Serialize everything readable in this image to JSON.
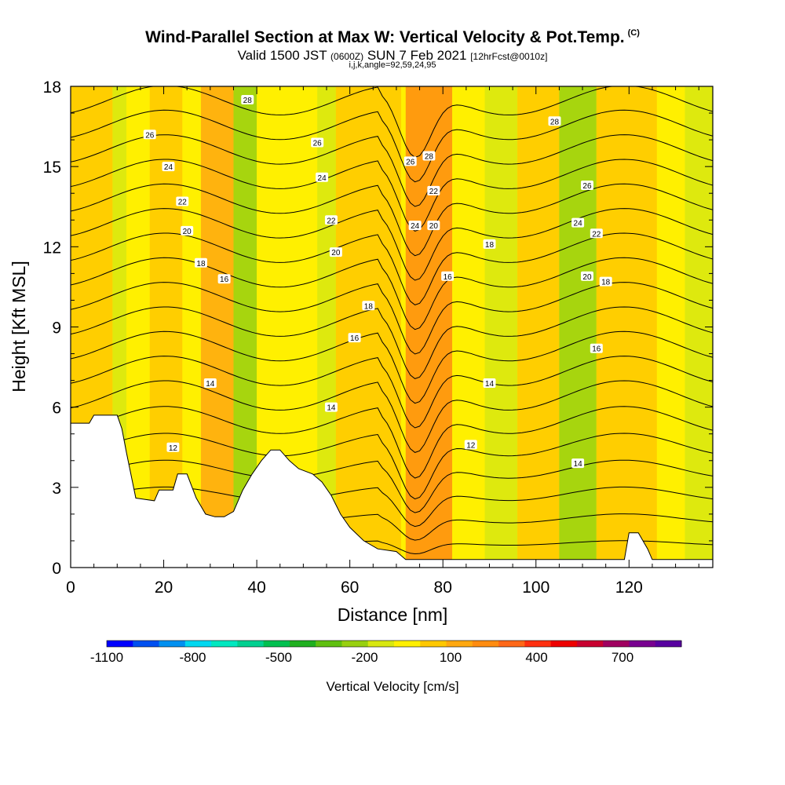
{
  "chart_data": {
    "type": "heatmap",
    "title": "Wind-Parallel Section at Max W: Vertical Velocity & Pot.Temp.",
    "title_mark": "(C)",
    "subtitle_pre": "Valid 1500 JST",
    "subtitle_utc": "(0600Z)",
    "subtitle_mid": "SUN 7 Feb 2021",
    "subtitle_fcst": "[12hrFcst@0010z]",
    "subtitle2": "i,j,k,angle=92,59,24,95",
    "xlabel": "Distance [nm]",
    "ylabel": "Height [Kft MSL]",
    "xlim": [
      0,
      138
    ],
    "ylim": [
      0,
      18
    ],
    "xticks": [
      0,
      20,
      40,
      60,
      80,
      100,
      120
    ],
    "yticks": [
      0,
      3,
      6,
      9,
      12,
      15,
      18
    ],
    "grid": false,
    "colorbar": {
      "label": "Vertical Velocity [cm/s]",
      "colors": [
        "#0000ff",
        "#0050f0",
        "#0090f0",
        "#00d8f0",
        "#00e8c0",
        "#00d090",
        "#00c050",
        "#20b020",
        "#60c010",
        "#98d010",
        "#d8e810",
        "#fff000",
        "#ffc800",
        "#ffa810",
        "#ff8c10",
        "#ff6818",
        "#ff3010",
        "#ee0000",
        "#c80030",
        "#a00060",
        "#780090",
        "#5800a0"
      ],
      "tick_labels": [
        "-1100",
        "-800",
        "-500",
        "-200",
        "100",
        "400",
        "700"
      ]
    },
    "velocity_bands": [
      {
        "x_range": [
          0,
          8
        ],
        "w_min": 100,
        "w_max": 150,
        "color": "#ffc800"
      },
      {
        "x_range": [
          9,
          11
        ],
        "w_min": -100,
        "w_max": -50,
        "color": "#d8e810"
      },
      {
        "x_range": [
          12,
          27
        ],
        "w_min": 0,
        "w_max": 100,
        "color": "#fff000"
      },
      {
        "x_range": [
          17,
          23
        ],
        "w_min": 100,
        "w_max": 150,
        "color": "#ffc800"
      },
      {
        "x_range": [
          28,
          34
        ],
        "w_min": 150,
        "w_max": 200,
        "color": "#ffa810"
      },
      {
        "x_range": [
          35,
          39
        ],
        "w_min": -150,
        "w_max": -50,
        "color": "#98d010"
      },
      {
        "x_range": [
          40,
          52
        ],
        "w_min": 0,
        "w_max": 100,
        "color": "#fff000"
      },
      {
        "x_range": [
          53,
          56
        ],
        "w_min": -100,
        "w_max": -50,
        "color": "#d8e810"
      },
      {
        "x_range": [
          57,
          70
        ],
        "w_min": 100,
        "w_max": 150,
        "color": "#ffc800"
      },
      {
        "x_range": [
          72,
          81
        ],
        "w_min": 200,
        "w_max": 350,
        "color": "#ff8c10"
      },
      {
        "x_range": [
          82,
          88
        ],
        "w_min": 0,
        "w_max": 100,
        "color": "#fff000"
      },
      {
        "x_range": [
          89,
          95
        ],
        "w_min": -100,
        "w_max": -50,
        "color": "#d8e810"
      },
      {
        "x_range": [
          96,
          104
        ],
        "w_min": 100,
        "w_max": 150,
        "color": "#ffc800"
      },
      {
        "x_range": [
          105,
          112
        ],
        "w_min": -150,
        "w_max": -50,
        "color": "#98d010"
      },
      {
        "x_range": [
          113,
          125
        ],
        "w_min": 100,
        "w_max": 200,
        "color": "#ffc800"
      },
      {
        "x_range": [
          126,
          131
        ],
        "w_min": 0,
        "w_max": 100,
        "color": "#fff000"
      },
      {
        "x_range": [
          132,
          138
        ],
        "w_min": -100,
        "w_max": 0,
        "color": "#d8e810"
      }
    ],
    "terrain": {
      "x": [
        0,
        4,
        5,
        10,
        11,
        12,
        14,
        18,
        19,
        22,
        23,
        25,
        27,
        29,
        31,
        33,
        35,
        37,
        39,
        41,
        43,
        45,
        47,
        49,
        52,
        54,
        56,
        58,
        60,
        63,
        66,
        70,
        72,
        75,
        78,
        80,
        82,
        85,
        88,
        92,
        96,
        100,
        104,
        108,
        112,
        117,
        119,
        120,
        122,
        124,
        125,
        128,
        132,
        138
      ],
      "y": [
        5.4,
        5.4,
        5.7,
        5.7,
        5.2,
        4.3,
        2.6,
        2.5,
        2.9,
        2.9,
        3.5,
        3.5,
        2.6,
        2.0,
        1.9,
        1.9,
        2.1,
        2.9,
        3.5,
        4.0,
        4.4,
        4.4,
        4.0,
        3.7,
        3.5,
        3.2,
        2.7,
        2.0,
        1.5,
        1.0,
        0.7,
        0.6,
        0.3,
        0.3,
        0.3,
        0.3,
        0.3,
        0.3,
        0.3,
        0.3,
        0.3,
        0.3,
        0.3,
        0.3,
        0.3,
        0.3,
        0.3,
        1.3,
        1.3,
        0.7,
        0.3,
        0.3,
        0.3,
        0.3
      ]
    },
    "theta_isentropes": {
      "levels": [
        11,
        12,
        13,
        14,
        15,
        16,
        17,
        18,
        19,
        20,
        21,
        22,
        23,
        24,
        25,
        26,
        27,
        28,
        29
      ],
      "labels": [
        {
          "text": "12",
          "x": 22,
          "y": 4.5
        },
        {
          "text": "14",
          "x": 30,
          "y": 6.9
        },
        {
          "text": "14",
          "x": 56,
          "y": 6.0
        },
        {
          "text": "14",
          "x": 90,
          "y": 6.9
        },
        {
          "text": "14",
          "x": 109,
          "y": 3.9
        },
        {
          "text": "12",
          "x": 86,
          "y": 4.6
        },
        {
          "text": "16",
          "x": 33,
          "y": 10.8
        },
        {
          "text": "16",
          "x": 61,
          "y": 8.6
        },
        {
          "text": "16",
          "x": 81,
          "y": 10.9
        },
        {
          "text": "16",
          "x": 113,
          "y": 8.2
        },
        {
          "text": "18",
          "x": 28,
          "y": 11.4
        },
        {
          "text": "18",
          "x": 64,
          "y": 9.8
        },
        {
          "text": "18",
          "x": 90,
          "y": 12.1
        },
        {
          "text": "18",
          "x": 115,
          "y": 10.7
        },
        {
          "text": "20",
          "x": 25,
          "y": 12.6
        },
        {
          "text": "20",
          "x": 57,
          "y": 11.8
        },
        {
          "text": "20",
          "x": 78,
          "y": 12.8
        },
        {
          "text": "20",
          "x": 111,
          "y": 10.9
        },
        {
          "text": "22",
          "x": 24,
          "y": 13.7
        },
        {
          "text": "22",
          "x": 56,
          "y": 13.0
        },
        {
          "text": "22",
          "x": 78,
          "y": 14.1
        },
        {
          "text": "22",
          "x": 113,
          "y": 12.5
        },
        {
          "text": "24",
          "x": 21,
          "y": 15.0
        },
        {
          "text": "24",
          "x": 54,
          "y": 14.6
        },
        {
          "text": "24",
          "x": 74,
          "y": 12.8
        },
        {
          "text": "24",
          "x": 109,
          "y": 12.9
        },
        {
          "text": "26",
          "x": 17,
          "y": 16.2
        },
        {
          "text": "26",
          "x": 53,
          "y": 15.9
        },
        {
          "text": "26",
          "x": 73,
          "y": 15.2
        },
        {
          "text": "26",
          "x": 111,
          "y": 14.3
        },
        {
          "text": "28",
          "x": 38,
          "y": 17.5
        },
        {
          "text": "28",
          "x": 77,
          "y": 15.4
        },
        {
          "text": "28",
          "x": 104,
          "y": 16.7
        }
      ]
    }
  }
}
